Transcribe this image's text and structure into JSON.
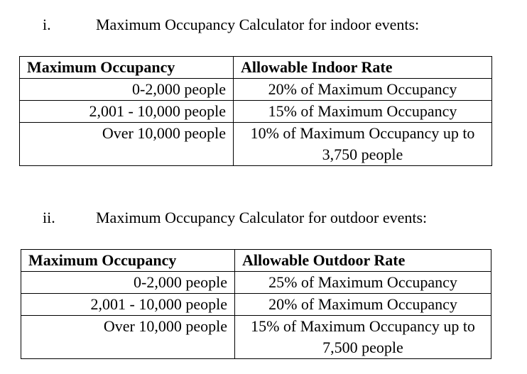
{
  "sections": [
    {
      "number": "i.",
      "title": "Maximum Occupancy Calculator for indoor events:",
      "headers": [
        "Maximum Occupancy",
        "Allowable Indoor Rate"
      ],
      "rows": [
        {
          "occupancy": "0-2,000 people",
          "rate": "20% of Maximum Occupancy"
        },
        {
          "occupancy": "2,001 - 10,000 people",
          "rate": "15% of Maximum Occupancy"
        },
        {
          "occupancy": "Over 10,000 people",
          "rate": "10% of Maximum Occupancy up to 3,750 people"
        }
      ]
    },
    {
      "number": "ii.",
      "title": "Maximum Occupancy Calculator for outdoor events:",
      "headers": [
        "Maximum Occupancy",
        "Allowable Outdoor Rate"
      ],
      "rows": [
        {
          "occupancy": "0-2,000 people",
          "rate": "25% of Maximum Occupancy"
        },
        {
          "occupancy": "2,001 - 10,000 people",
          "rate": "20% of Maximum Occupancy"
        },
        {
          "occupancy": "Over 10,000 people",
          "rate": "15% of Maximum Occupancy up to 7,500 people"
        }
      ]
    }
  ]
}
